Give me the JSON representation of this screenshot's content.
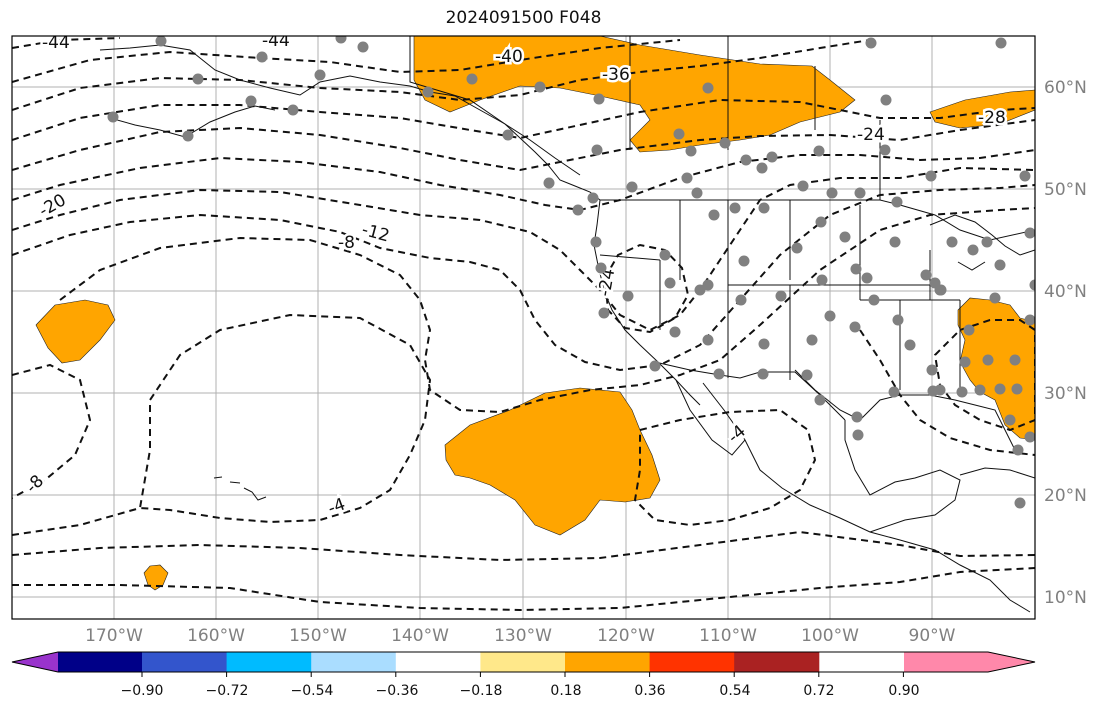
{
  "title": "2024091500 F048",
  "map": {
    "lon_labels": [
      "170°W",
      "160°W",
      "150°W",
      "140°W",
      "130°W",
      "120°W",
      "110°W",
      "100°W",
      "90°W"
    ],
    "lat_labels": [
      "60°N",
      "50°N",
      "40°N",
      "30°N",
      "20°N",
      "10°N"
    ],
    "contour_labels": [
      "-44",
      "-44",
      "-40",
      "-36",
      "-28",
      "-24",
      "-20",
      "-12",
      "-8",
      "-24",
      "-4",
      "-4",
      "-8"
    ],
    "station_marker_color": "#808080",
    "fill_color": "#FFA500"
  },
  "colorbar": {
    "colors": [
      "#9933CC",
      "#000088",
      "#3355CC",
      "#00BBFF",
      "#AADDFF",
      "#FFFFFF",
      "#FFE88A",
      "#FFA500",
      "#FF3300",
      "#AA2222",
      "#FF88AA"
    ],
    "tick_labels": [
      "−0.90",
      "−0.72",
      "−0.54",
      "−0.36",
      "−0.18",
      "0.18",
      "0.36",
      "0.54",
      "0.72",
      "0.90"
    ]
  }
}
